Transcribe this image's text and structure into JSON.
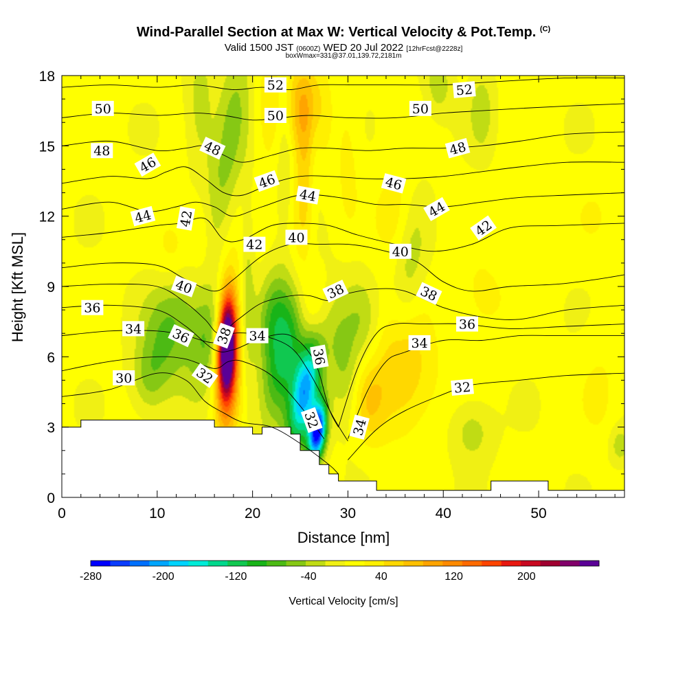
{
  "title": {
    "main": "Wind-Parallel Section at Max W: Vertical Velocity & Pot.Temp.",
    "copyright": "(C)",
    "line2_a": "Valid 1500 JST",
    "line2_b": "(0600Z)",
    "line2_c": "WED 20 Jul 2022",
    "line2_d": "[12hrFcst@2228z]",
    "line3": "boxWmax=331@37.01,139.72,2181m"
  },
  "chart_data": {
    "type": "heatmap",
    "xlabel": "Distance [nm]",
    "ylabel": "Height [Kft MSL]",
    "xlim": [
      0,
      59
    ],
    "ylim": [
      0,
      18
    ],
    "x_ticks": [
      "0",
      "10",
      "20",
      "30",
      "40",
      "50"
    ],
    "y_ticks": [
      "0",
      "3",
      "6",
      "9",
      "12",
      "15",
      "18"
    ],
    "colorbar": {
      "label": "Vertical Velocity [cm/s]",
      "range": [
        -280,
        280
      ],
      "tick_labels": [
        "-280",
        "-200",
        "-120",
        "-40",
        "40",
        "120",
        "200"
      ],
      "colors": [
        "#0000ff",
        "#0a3cff",
        "#0070ff",
        "#00a6ff",
        "#00d4ff",
        "#00ecd8",
        "#00d88c",
        "#10c850",
        "#18b418",
        "#4cba14",
        "#86c814",
        "#c0dc14",
        "#f0f014",
        "#ffff00",
        "#fff000",
        "#ffd800",
        "#ffc000",
        "#ffa400",
        "#ff8a00",
        "#ff6a00",
        "#ff4400",
        "#e81810",
        "#c80820",
        "#a00030",
        "#82006a",
        "#5a0096"
      ]
    },
    "terrain_kft": [
      [
        0,
        3.0
      ],
      [
        2,
        3.0
      ],
      [
        2,
        3.3
      ],
      [
        16,
        3.3
      ],
      [
        16,
        3.0
      ],
      [
        20,
        3.0
      ],
      [
        20,
        2.7
      ],
      [
        21,
        2.7
      ],
      [
        21,
        3.0
      ],
      [
        24,
        3.0
      ],
      [
        24,
        2.7
      ],
      [
        25,
        2.7
      ],
      [
        25,
        2.0
      ],
      [
        27,
        2.0
      ],
      [
        27,
        1.4
      ],
      [
        28,
        1.4
      ],
      [
        28,
        1.0
      ],
      [
        29,
        1.0
      ],
      [
        29,
        0.7
      ],
      [
        33,
        0.7
      ],
      [
        33,
        0.3
      ],
      [
        45,
        0.3
      ],
      [
        45,
        0.7
      ],
      [
        51,
        0.7
      ],
      [
        51,
        0.3
      ],
      [
        59,
        0.3
      ]
    ],
    "theta_contours": [
      {
        "label": "30",
        "x": [
          0,
          5,
          10,
          13,
          15,
          17,
          19,
          22,
          25,
          28,
          29
        ],
        "y": [
          4.3,
          4.6,
          5.3,
          5.0,
          4.1,
          3.6,
          3.2,
          3.0,
          2.3,
          1.4,
          1.0
        ]
      },
      {
        "label": "32",
        "x": [
          0,
          5,
          10,
          13,
          16,
          17.5,
          19,
          22,
          25,
          27.5
        ],
        "y": [
          5.4,
          5.8,
          6.0,
          5.9,
          5.5,
          5.8,
          5.8,
          5.2,
          3.9,
          2.5
        ]
      },
      {
        "label": "32",
        "x": [
          30,
          33,
          36,
          40,
          43,
          48,
          53,
          59
        ],
        "y": [
          1.6,
          2.9,
          3.7,
          4.4,
          4.8,
          5.0,
          5.2,
          5.3
        ]
      },
      {
        "label": "34",
        "x": [
          0,
          5,
          10,
          13,
          16,
          18,
          21,
          24,
          26,
          28.5,
          30
        ],
        "y": [
          6.9,
          7.1,
          7.1,
          6.9,
          6.6,
          7.0,
          6.9,
          6.4,
          5.3,
          3.4,
          2.4
        ]
      },
      {
        "label": "34",
        "x": [
          30,
          32,
          34,
          36,
          40,
          44,
          48,
          52,
          59
        ],
        "y": [
          2.5,
          4.5,
          5.8,
          6.2,
          6.7,
          6.7,
          6.9,
          6.9,
          6.9
        ]
      },
      {
        "label": "36",
        "x": [
          0,
          5,
          10,
          13,
          16,
          18,
          21,
          24,
          26.5,
          28,
          29
        ],
        "y": [
          8.1,
          8.2,
          8.0,
          7.3,
          6.3,
          6.3,
          6.8,
          6.9,
          5.8,
          3.8,
          3.0
        ]
      },
      {
        "label": "36",
        "x": [
          29,
          31,
          33,
          35,
          38,
          42,
          47,
          53,
          59
        ],
        "y": [
          3.0,
          5.5,
          7.0,
          7.4,
          7.4,
          7.4,
          7.2,
          7.3,
          7.4
        ]
      },
      {
        "label": "38",
        "x": [
          0,
          5,
          10,
          13,
          15,
          16.5,
          18.5,
          21,
          24,
          26,
          28,
          30,
          33,
          36,
          40,
          44,
          48,
          53,
          59
        ],
        "y": [
          9.0,
          9.1,
          9.0,
          8.3,
          7.6,
          7.0,
          7.6,
          8.3,
          8.6,
          8.6,
          8.4,
          8.7,
          8.9,
          8.8,
          8.1,
          7.7,
          7.6,
          8.0,
          8.2
        ]
      },
      {
        "label": "40",
        "x": [
          0,
          5,
          10,
          13,
          16,
          18,
          21,
          24,
          27,
          30,
          33,
          37,
          40,
          43,
          47,
          52,
          56,
          59
        ],
        "y": [
          9.8,
          10.0,
          9.9,
          9.3,
          8.8,
          9.3,
          10.3,
          10.8,
          10.8,
          10.8,
          10.6,
          10.1,
          9.2,
          8.8,
          9.0,
          9.1,
          9.3,
          9.5
        ]
      },
      {
        "label": "42",
        "x": [
          0,
          5,
          10,
          12.5,
          15,
          17,
          19,
          22,
          25,
          28,
          31,
          35,
          39,
          43,
          47,
          52,
          59
        ],
        "y": [
          11.1,
          11.3,
          11.6,
          11.7,
          11.9,
          11.0,
          11.0,
          11.6,
          11.7,
          11.6,
          11.2,
          10.8,
          10.5,
          10.8,
          11.5,
          11.6,
          11.7
        ]
      },
      {
        "label": "44",
        "x": [
          0,
          5,
          9,
          12,
          14,
          16,
          18,
          21,
          25,
          29,
          33,
          36,
          40,
          44,
          48,
          53,
          59
        ],
        "y": [
          12.3,
          12.6,
          12.2,
          12.4,
          12.6,
          12.4,
          12.0,
          12.4,
          12.9,
          12.8,
          12.5,
          12.5,
          12.4,
          12.6,
          12.8,
          12.9,
          13.0
        ]
      },
      {
        "label": "46",
        "x": [
          0,
          5,
          9,
          11,
          13,
          15,
          17,
          19,
          22,
          25,
          28,
          32,
          36,
          40,
          44,
          48,
          53,
          59
        ],
        "y": [
          13.4,
          13.7,
          13.6,
          13.9,
          14.1,
          13.6,
          13.0,
          12.9,
          13.4,
          13.7,
          13.7,
          13.6,
          13.6,
          13.7,
          13.9,
          14.1,
          14.3,
          14.3
        ]
      },
      {
        "label": "48",
        "x": [
          0,
          5,
          10,
          13,
          15,
          17,
          19,
          22,
          25,
          28,
          32,
          36,
          40,
          44,
          48,
          53,
          59
        ],
        "y": [
          15.0,
          15.2,
          14.8,
          14.9,
          15.0,
          14.6,
          14.3,
          14.6,
          14.9,
          14.9,
          14.8,
          14.9,
          14.9,
          15.0,
          15.2,
          15.5,
          15.6
        ]
      },
      {
        "label": "50",
        "x": [
          0,
          5,
          10,
          14,
          17,
          20,
          23,
          26,
          30,
          35,
          40,
          44,
          48,
          53,
          59
        ],
        "y": [
          16.2,
          16.4,
          16.3,
          16.4,
          16.3,
          16.1,
          16.2,
          16.3,
          16.2,
          16.2,
          16.4,
          16.5,
          16.6,
          16.7,
          16.8
        ]
      },
      {
        "label": "52",
        "x": [
          0,
          5,
          10,
          14,
          18,
          21,
          24,
          27,
          31,
          35,
          40,
          44,
          48,
          53,
          59
        ],
        "y": [
          17.5,
          17.6,
          17.5,
          17.6,
          17.4,
          17.5,
          17.4,
          17.6,
          17.6,
          17.6,
          17.6,
          17.7,
          17.8,
          17.9,
          17.9
        ]
      }
    ],
    "contour_labels": [
      {
        "text": "30",
        "x": 6.5,
        "y": 5.1,
        "angle": 0
      },
      {
        "text": "32",
        "x": 15,
        "y": 5.2,
        "angle": 35
      },
      {
        "text": "32",
        "x": 26.2,
        "y": 3.3,
        "angle": 70
      },
      {
        "text": "32",
        "x": 42,
        "y": 4.7,
        "angle": -5
      },
      {
        "text": "34",
        "x": 7.5,
        "y": 7.2,
        "angle": 0
      },
      {
        "text": "34",
        "x": 20.5,
        "y": 6.9,
        "angle": 0
      },
      {
        "text": "34",
        "x": 31.2,
        "y": 3.0,
        "angle": -75
      },
      {
        "text": "34",
        "x": 37.5,
        "y": 6.6,
        "angle": 0
      },
      {
        "text": "36",
        "x": 3.2,
        "y": 8.1,
        "angle": 0
      },
      {
        "text": "36",
        "x": 12.5,
        "y": 6.9,
        "angle": 25
      },
      {
        "text": "36",
        "x": 27,
        "y": 6.0,
        "angle": 80
      },
      {
        "text": "36",
        "x": 42.5,
        "y": 7.4,
        "angle": 0
      },
      {
        "text": "38",
        "x": 17,
        "y": 6.9,
        "angle": -70
      },
      {
        "text": "38",
        "x": 28.7,
        "y": 8.8,
        "angle": -25
      },
      {
        "text": "38",
        "x": 38.5,
        "y": 8.7,
        "angle": 25
      },
      {
        "text": "40",
        "x": 12.8,
        "y": 9.0,
        "angle": 20
      },
      {
        "text": "40",
        "x": 24.6,
        "y": 11.1,
        "angle": 0
      },
      {
        "text": "40",
        "x": 35.5,
        "y": 10.5,
        "angle": 0
      },
      {
        "text": "42",
        "x": 13,
        "y": 11.9,
        "angle": -80
      },
      {
        "text": "42",
        "x": 20.2,
        "y": 10.8,
        "angle": 0
      },
      {
        "text": "42",
        "x": 44.2,
        "y": 11.5,
        "angle": -35
      },
      {
        "text": "44",
        "x": 8.5,
        "y": 12.0,
        "angle": -15
      },
      {
        "text": "44",
        "x": 25.8,
        "y": 12.9,
        "angle": 10
      },
      {
        "text": "44",
        "x": 39.3,
        "y": 12.3,
        "angle": -30
      },
      {
        "text": "46",
        "x": 9,
        "y": 14.2,
        "angle": -30
      },
      {
        "text": "46",
        "x": 21.5,
        "y": 13.5,
        "angle": -20
      },
      {
        "text": "46",
        "x": 34.8,
        "y": 13.4,
        "angle": 15
      },
      {
        "text": "48",
        "x": 4.2,
        "y": 14.8,
        "angle": 0
      },
      {
        "text": "48",
        "x": 15.8,
        "y": 14.9,
        "angle": 25
      },
      {
        "text": "48",
        "x": 41.5,
        "y": 14.9,
        "angle": -15
      },
      {
        "text": "50",
        "x": 4.3,
        "y": 16.6,
        "angle": 0
      },
      {
        "text": "50",
        "x": 22.4,
        "y": 16.3,
        "angle": 0
      },
      {
        "text": "50",
        "x": 37.6,
        "y": 16.6,
        "angle": 0
      },
      {
        "text": "52",
        "x": 22.4,
        "y": 17.6,
        "angle": 0
      },
      {
        "text": "52",
        "x": 42.2,
        "y": 17.4,
        "angle": -5
      }
    ],
    "w_features": [
      {
        "x": 17.3,
        "y": 6.5,
        "sx": 0.65,
        "sy": 1.5,
        "rot": -4,
        "w": 290
      },
      {
        "x": 17.4,
        "y": 5.5,
        "sx": 0.85,
        "sy": 2.0,
        "rot": -4,
        "w": 80
      },
      {
        "x": 17.4,
        "y": 6.5,
        "sx": 1.2,
        "sy": 3.5,
        "rot": -4,
        "w": 40
      },
      {
        "x": 15.5,
        "y": 6.8,
        "sx": 1.3,
        "sy": 1.8,
        "rot": -40,
        "w": -75
      },
      {
        "x": 12.5,
        "y": 8.5,
        "sx": 1.5,
        "sy": 2.0,
        "rot": -40,
        "w": -50
      },
      {
        "x": 10.5,
        "y": 6.5,
        "sx": 1.8,
        "sy": 1.6,
        "rot": -20,
        "w": -50
      },
      {
        "x": 23.5,
        "y": 6.5,
        "sx": 1.3,
        "sy": 2.5,
        "rot": -32,
        "w": -130
      },
      {
        "x": 25.5,
        "y": 4.5,
        "sx": 0.9,
        "sy": 1.8,
        "rot": -30,
        "w": -200
      },
      {
        "x": 26.8,
        "y": 2.8,
        "sx": 0.6,
        "sy": 0.9,
        "rot": -25,
        "w": -280
      },
      {
        "x": 22,
        "y": 8.0,
        "sx": 1.0,
        "sy": 1.4,
        "rot": -25,
        "w": -50
      },
      {
        "x": 19.5,
        "y": 8.5,
        "sx": 0.5,
        "sy": 3.0,
        "rot": 0,
        "w": -40
      },
      {
        "x": 29.5,
        "y": 5.8,
        "sx": 1.2,
        "sy": 2.2,
        "rot": 25,
        "w": -55
      },
      {
        "x": 31.5,
        "y": 7.5,
        "sx": 1.2,
        "sy": 1.5,
        "rot": 30,
        "w": -40
      },
      {
        "x": 36.5,
        "y": 10.0,
        "sx": 1.1,
        "sy": 2.0,
        "rot": -20,
        "w": -40
      },
      {
        "x": 26,
        "y": 8.2,
        "sx": 1.3,
        "sy": 1.3,
        "rot": 0,
        "w": 45
      },
      {
        "x": 25.5,
        "y": 12.5,
        "sx": 1.0,
        "sy": 2.8,
        "rot": -10,
        "w": 60
      },
      {
        "x": 25.2,
        "y": 16.8,
        "sx": 1.6,
        "sy": 1.5,
        "rot": 0,
        "w": 75
      },
      {
        "x": 21.5,
        "y": 16.5,
        "sx": 1.0,
        "sy": 1.8,
        "rot": 0,
        "w": 30
      },
      {
        "x": 23.5,
        "y": 15.5,
        "sx": 0.7,
        "sy": 2.4,
        "rot": 0,
        "w": -40
      },
      {
        "x": 26.5,
        "y": 14.5,
        "sx": 0.6,
        "sy": 2.0,
        "rot": 0,
        "w": -40
      },
      {
        "x": 17.5,
        "y": 15.0,
        "sx": 1.2,
        "sy": 3.5,
        "rot": -20,
        "w": -60
      },
      {
        "x": 14.5,
        "y": 16.5,
        "sx": 1.0,
        "sy": 1.8,
        "rot": 0,
        "w": -40
      },
      {
        "x": 30,
        "y": 14.5,
        "sx": 0.9,
        "sy": 2.0,
        "rot": 0,
        "w": 25
      },
      {
        "x": 35.5,
        "y": 5.3,
        "sx": 2.5,
        "sy": 1.8,
        "rot": 0,
        "w": 60
      },
      {
        "x": 32,
        "y": 4.0,
        "sx": 1.2,
        "sy": 1.2,
        "rot": 20,
        "w": 50
      },
      {
        "x": 35,
        "y": 12.0,
        "sx": 1.5,
        "sy": 1.5,
        "rot": 0,
        "w": 30
      },
      {
        "x": 12,
        "y": 10.3,
        "sx": 1.4,
        "sy": 1.2,
        "rot": 0,
        "w": 40
      },
      {
        "x": 14.5,
        "y": 11.0,
        "sx": 1.0,
        "sy": 1.4,
        "rot": 0,
        "w": 35
      },
      {
        "x": 9,
        "y": 5.0,
        "sx": 1.2,
        "sy": 1.0,
        "rot": 0,
        "w": -40
      },
      {
        "x": 43,
        "y": 2.8,
        "sx": 1.5,
        "sy": 0.9,
        "rot": 0,
        "w": -40
      },
      {
        "x": 39.5,
        "y": 17.6,
        "sx": 1.0,
        "sy": 0.9,
        "rot": 0,
        "w": -40
      },
      {
        "x": 44,
        "y": 16.5,
        "sx": 0.9,
        "sy": 1.2,
        "rot": 0,
        "w": -40
      },
      {
        "x": 56,
        "y": 12.0,
        "sx": 1.5,
        "sy": 1.0,
        "rot": 0,
        "w": 15
      },
      {
        "x": 58.5,
        "y": 2.2,
        "sx": 0.8,
        "sy": 0.6,
        "rot": 0,
        "w": -40
      },
      {
        "x": 56.5,
        "y": 4.5,
        "sx": 1.5,
        "sy": 1.6,
        "rot": 0,
        "w": 20
      },
      {
        "x": 44,
        "y": 8.5,
        "sx": 2.0,
        "sy": 1.4,
        "rot": 0,
        "w": 25
      },
      {
        "x": 49,
        "y": 11.5,
        "sx": 1.5,
        "sy": 1.3,
        "rot": 0,
        "w": 20
      }
    ]
  }
}
